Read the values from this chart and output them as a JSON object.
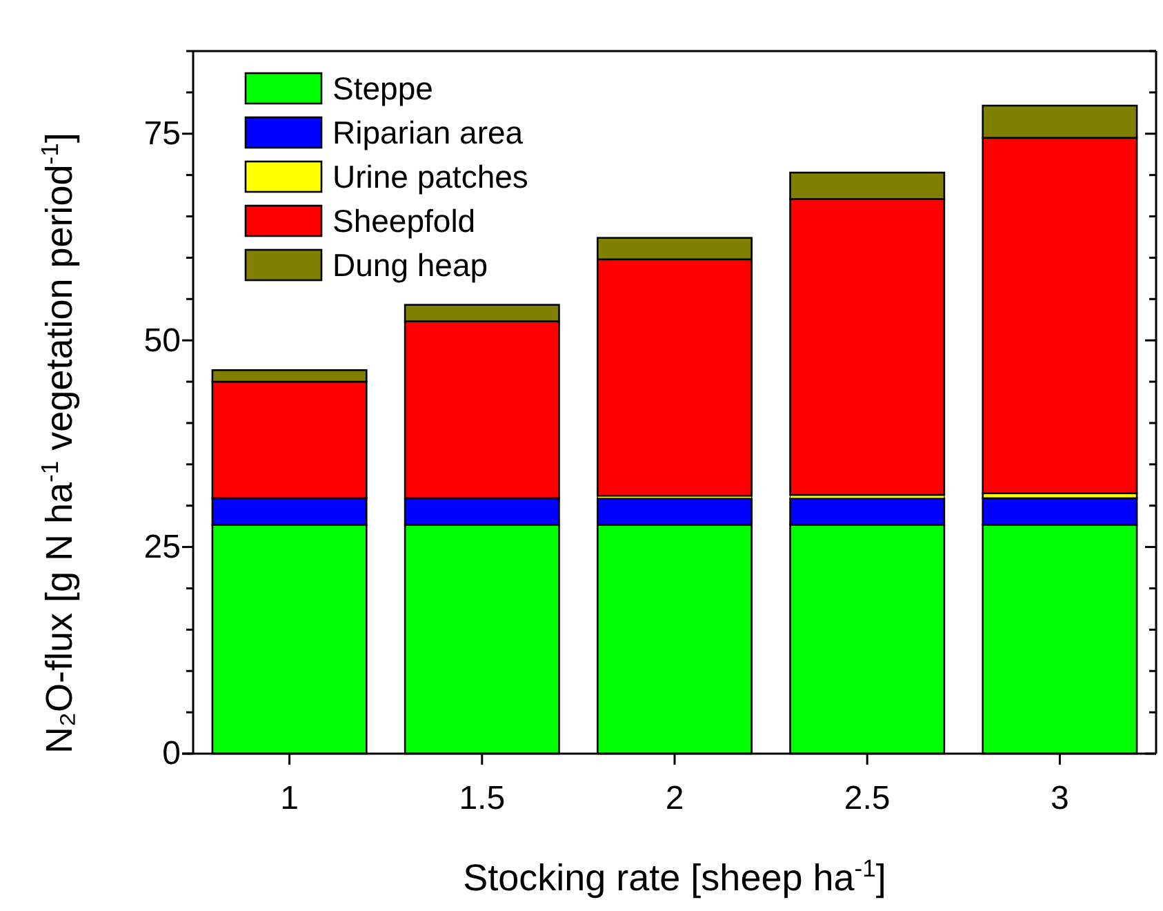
{
  "chart_data": {
    "type": "bar",
    "stacked": true,
    "xlabel": "Stocking rate [sheep ha$^{-1}$]",
    "ylabel": "N₂O-flux [g N ha$^{-1}$ vegetation period$^{-1}$]",
    "categories": [
      "1",
      "1.5",
      "2",
      "2.5",
      "3"
    ],
    "series": [
      {
        "name": "Steppe",
        "color": "#00ff00",
        "values": [
          27.7,
          27.7,
          27.7,
          27.7,
          27.7
        ]
      },
      {
        "name": "Riparian area",
        "color": "#0000ff",
        "values": [
          3.2,
          3.2,
          3.2,
          3.2,
          3.2
        ]
      },
      {
        "name": "Urine patches",
        "color": "#ffff00",
        "values": [
          null,
          null,
          0.3,
          0.4,
          0.6
        ]
      },
      {
        "name": "Sheepfold",
        "color": "#ff0000",
        "values": [
          14.1,
          21.4,
          28.6,
          35.8,
          43.0
        ]
      },
      {
        "name": "Dung heap",
        "color": "#808000",
        "values": [
          1.4,
          2.0,
          2.6,
          3.2,
          3.9
        ]
      }
    ],
    "ylim": [
      0,
      85
    ],
    "yticks": [
      0,
      {
        "value": 5,
        "label": null
      },
      {
        "value": 10,
        "label": null
      },
      {
        "value": 15,
        "label": null
      },
      {
        "value": 20,
        "label": null
      },
      25,
      {
        "value": 30,
        "label": null
      },
      {
        "value": 35,
        "label": null
      },
      {
        "value": 40,
        "label": null
      },
      {
        "value": 45,
        "label": null
      },
      50,
      {
        "value": 55,
        "label": null
      },
      {
        "value": 60,
        "label": null
      },
      {
        "value": 65,
        "label": null
      },
      {
        "value": 70,
        "label": null
      },
      75,
      {
        "value": 80,
        "label": null
      },
      {
        "value": 85,
        "label": null
      }
    ],
    "grid": false,
    "legend": "top left"
  }
}
